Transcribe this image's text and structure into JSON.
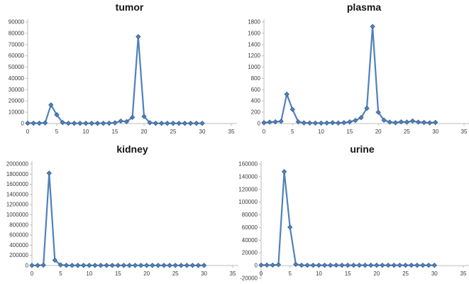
{
  "colors": {
    "line": "#4f81bd",
    "marker_fill": "#4f81bd",
    "marker_edge": "#385d8a",
    "axis": "#bdbdbd",
    "tick_label": "#3a3a3a",
    "title": "#151515",
    "background": "#ffffff"
  },
  "chart_data": [
    {
      "type": "line",
      "title": "tumor",
      "x": [
        0,
        1,
        2,
        3,
        4,
        5,
        6,
        7,
        8,
        9,
        10,
        11,
        12,
        13,
        14,
        15,
        16,
        17,
        18,
        19,
        20,
        21,
        22,
        23,
        24,
        25,
        26,
        27,
        28,
        29,
        30
      ],
      "values": [
        300,
        300,
        300,
        600,
        16500,
        7800,
        900,
        200,
        200,
        200,
        200,
        200,
        200,
        200,
        300,
        700,
        2200,
        1700,
        5500,
        77000,
        6300,
        700,
        200,
        200,
        200,
        200,
        200,
        200,
        200,
        200,
        200
      ],
      "xlim": [
        0,
        35
      ],
      "xtick_step": 5,
      "ylim": [
        0,
        90000
      ],
      "ytick_step": 10000,
      "grid": false,
      "legend": "none",
      "marker": "diamond"
    },
    {
      "type": "line",
      "title": "plasma",
      "x": [
        0,
        1,
        2,
        3,
        4,
        5,
        6,
        7,
        8,
        9,
        10,
        11,
        12,
        13,
        14,
        15,
        16,
        17,
        18,
        19,
        20,
        21,
        22,
        23,
        24,
        25,
        26,
        27,
        28,
        29,
        30
      ],
      "values": [
        15,
        25,
        30,
        40,
        520,
        250,
        30,
        12,
        10,
        8,
        8,
        10,
        15,
        10,
        15,
        30,
        55,
        105,
        270,
        1720,
        200,
        60,
        25,
        15,
        30,
        25,
        45,
        25,
        20,
        12,
        20
      ],
      "xlim": [
        0,
        35
      ],
      "xtick_step": 5,
      "ylim": [
        0,
        1800
      ],
      "ytick_step": 200,
      "grid": false,
      "legend": "none",
      "marker": "diamond"
    },
    {
      "type": "line",
      "title": "kidney",
      "x": [
        0,
        1,
        2,
        3,
        4,
        5,
        6,
        7,
        8,
        9,
        10,
        11,
        12,
        13,
        14,
        15,
        16,
        17,
        18,
        19,
        20,
        21,
        22,
        23,
        24,
        25,
        26,
        27,
        28,
        29,
        30
      ],
      "values": [
        3000,
        3000,
        8000,
        1820000,
        105000,
        12000,
        4000,
        3000,
        3000,
        3000,
        3000,
        3000,
        3000,
        3000,
        3000,
        3000,
        3000,
        3000,
        3000,
        3000,
        3000,
        3000,
        3000,
        3000,
        3000,
        3000,
        3000,
        3000,
        3000,
        3000,
        3000
      ],
      "xlim": [
        0,
        35
      ],
      "xtick_step": 5,
      "ylim": [
        0,
        2000000
      ],
      "ytick_step": 200000,
      "grid": false,
      "legend": "none",
      "marker": "diamond"
    },
    {
      "type": "line",
      "title": "urine",
      "x": [
        0,
        1,
        2,
        3,
        4,
        5,
        6,
        7,
        8,
        9,
        10,
        11,
        12,
        13,
        14,
        15,
        16,
        17,
        18,
        19,
        20,
        21,
        22,
        23,
        24,
        25,
        26,
        27,
        28,
        29,
        30
      ],
      "values": [
        800,
        800,
        800,
        1500,
        148000,
        60500,
        2000,
        600,
        600,
        600,
        600,
        600,
        600,
        600,
        600,
        600,
        600,
        600,
        600,
        600,
        600,
        600,
        600,
        600,
        600,
        600,
        600,
        600,
        600,
        600,
        600
      ],
      "xlim": [
        0,
        35
      ],
      "xtick_step": 5,
      "ylim": [
        -20000,
        160000
      ],
      "ytick_step": 20000,
      "grid": false,
      "legend": "none",
      "marker": "diamond"
    }
  ]
}
